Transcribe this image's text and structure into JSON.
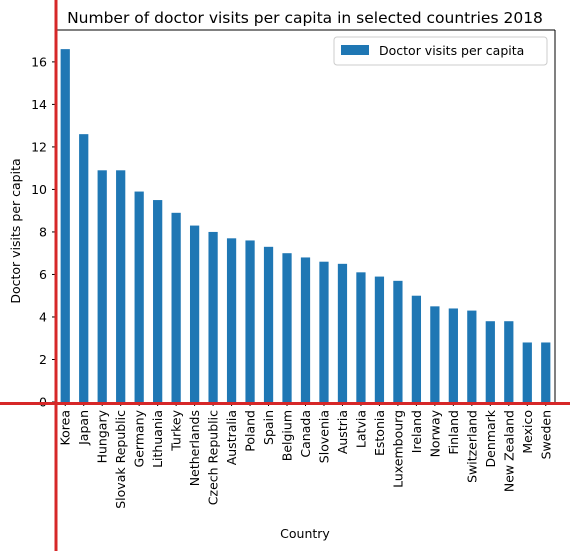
{
  "chart_data": {
    "type": "bar",
    "title": "Number of doctor visits per capita in selected countries 2018",
    "xlabel": "Country",
    "ylabel": "Doctor visits per capita",
    "categories": [
      "Korea",
      "Japan",
      "Hungary",
      "Slovak Republic",
      "Germany",
      "Lithuania",
      "Turkey",
      "Netherlands",
      "Czech Republic",
      "Australia",
      "Poland",
      "Spain",
      "Belgium",
      "Canada",
      "Slovenia",
      "Austria",
      "Latvia",
      "Estonia",
      "Luxembourg",
      "Ireland",
      "Norway",
      "Finland",
      "Switzerland",
      "Denmark",
      "New Zealand",
      "Mexico",
      "Sweden"
    ],
    "series": [
      {
        "name": "Doctor visits per capita",
        "values": [
          16.6,
          12.6,
          10.9,
          10.9,
          9.9,
          9.5,
          8.9,
          8.3,
          8.0,
          7.7,
          7.6,
          7.3,
          7.0,
          6.8,
          6.6,
          6.5,
          6.1,
          5.9,
          5.7,
          5.0,
          4.5,
          4.4,
          4.3,
          3.8,
          3.8,
          2.8,
          2.8
        ]
      }
    ],
    "yticks": [
      0,
      2,
      4,
      6,
      8,
      10,
      12,
      14,
      16
    ],
    "ylim": [
      0,
      17.5
    ],
    "legend_position": "top-right",
    "grid": false,
    "colors": {
      "bar": "#1f77b4",
      "axis_highlight": "#d62728"
    }
  }
}
